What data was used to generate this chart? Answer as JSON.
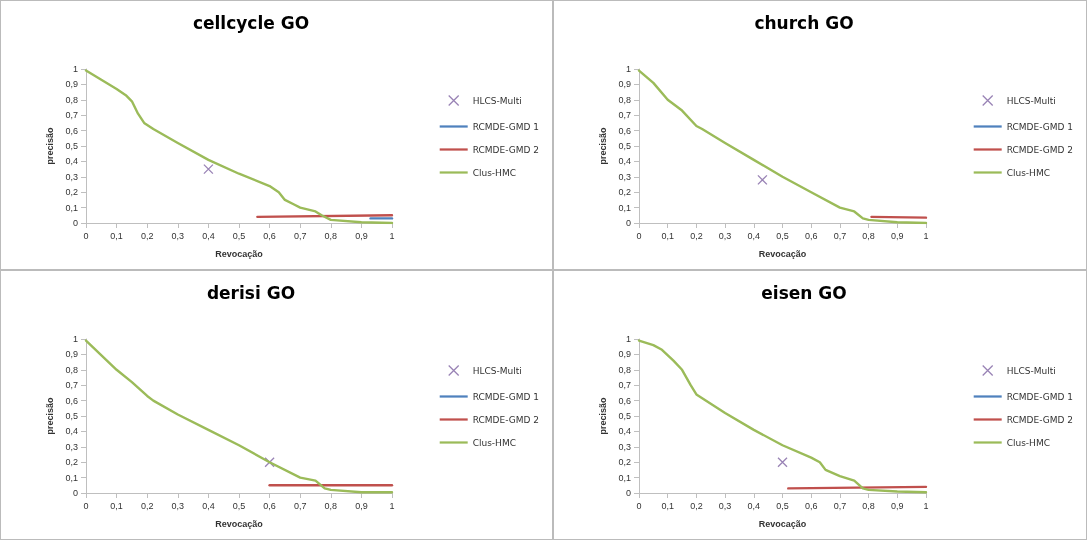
{
  "chart_data": [
    {
      "type": "line",
      "title": "cellcycle GO",
      "xlabel": "Revocação",
      "ylabel": "precisão",
      "legend": "right",
      "grid": false,
      "xlim": [
        0,
        1
      ],
      "ylim": [
        0,
        1
      ],
      "xticks": [
        {
          "value": 0,
          "label": "0"
        },
        {
          "value": 0.1,
          "label": "0,1"
        },
        {
          "value": 0.2,
          "label": "0,2"
        },
        {
          "value": 0.3,
          "label": "0,3"
        },
        {
          "value": 0.4,
          "label": "0,4"
        },
        {
          "value": 0.5,
          "label": "0,5"
        },
        {
          "value": 0.6,
          "label": "0,6"
        },
        {
          "value": 0.7,
          "label": "0,7"
        },
        {
          "value": 0.8,
          "label": "0,8"
        },
        {
          "value": 0.9,
          "label": "0,9"
        },
        {
          "value": 1,
          "label": "1"
        }
      ],
      "yticks": [
        {
          "value": 0,
          "label": "0"
        },
        {
          "value": 0.1,
          "label": "0,1"
        },
        {
          "value": 0.2,
          "label": "0,2"
        },
        {
          "value": 0.3,
          "label": "0,3"
        },
        {
          "value": 0.4,
          "label": "0,4"
        },
        {
          "value": 0.5,
          "label": "0,5"
        },
        {
          "value": 0.6,
          "label": "0,6"
        },
        {
          "value": 0.7,
          "label": "0,7"
        },
        {
          "value": 0.8,
          "label": "0,8"
        },
        {
          "value": 0.9,
          "label": "0,9"
        },
        {
          "value": 1,
          "label": "1"
        }
      ],
      "series": [
        {
          "name": "HLCS-Multi",
          "type": "scatter",
          "marker": "cross",
          "color": "#8064a2",
          "x": [
            0.4
          ],
          "values": [
            0.35
          ]
        },
        {
          "name": "RCMDE-GMD 1",
          "color": "#4f81bd",
          "x": [
            0.93,
            1
          ],
          "values": [
            0.03,
            0.03
          ]
        },
        {
          "name": "RCMDE-GMD 2",
          "type": "line",
          "color": "#c0504d",
          "x": [
            0.56,
            1
          ],
          "values": [
            0.04,
            0.05
          ]
        },
        {
          "name": "Clus-HMC",
          "type": "line",
          "color": "#9bbb59",
          "x": [
            0,
            0.05,
            0.1,
            0.13,
            0.15,
            0.17,
            0.19,
            0.22,
            0.3,
            0.4,
            0.5,
            0.6,
            0.63,
            0.65,
            0.68,
            0.7,
            0.75,
            0.77,
            0.8,
            0.9,
            1
          ],
          "values": [
            0.99,
            0.93,
            0.87,
            0.83,
            0.79,
            0.71,
            0.65,
            0.61,
            0.52,
            0.41,
            0.32,
            0.24,
            0.2,
            0.15,
            0.12,
            0.1,
            0.075,
            0.05,
            0.02,
            0.005,
            0
          ]
        }
      ]
    },
    {
      "type": "line",
      "title": "church GO",
      "xlabel": "Revocação",
      "ylabel": "precisão",
      "legend": "right",
      "grid": false,
      "xlim": [
        0,
        1
      ],
      "ylim": [
        0,
        1
      ],
      "xticks": [
        {
          "value": 0,
          "label": "0"
        },
        {
          "value": 0.1,
          "label": "0,1"
        },
        {
          "value": 0.2,
          "label": "0,2"
        },
        {
          "value": 0.3,
          "label": "0,3"
        },
        {
          "value": 0.4,
          "label": "0,4"
        },
        {
          "value": 0.5,
          "label": "0,5"
        },
        {
          "value": 0.6,
          "label": "0,6"
        },
        {
          "value": 0.7,
          "label": "0,7"
        },
        {
          "value": 0.8,
          "label": "0,8"
        },
        {
          "value": 0.9,
          "label": "0,9"
        },
        {
          "value": 1,
          "label": "1"
        }
      ],
      "yticks": [
        {
          "value": 0,
          "label": "0"
        },
        {
          "value": 0.1,
          "label": "0,1"
        },
        {
          "value": 0.2,
          "label": "0,2"
        },
        {
          "value": 0.3,
          "label": "0,3"
        },
        {
          "value": 0.4,
          "label": "0,4"
        },
        {
          "value": 0.5,
          "label": "0,5"
        },
        {
          "value": 0.6,
          "label": "0,6"
        },
        {
          "value": 0.7,
          "label": "0,7"
        },
        {
          "value": 0.8,
          "label": "0,8"
        },
        {
          "value": 0.9,
          "label": "0,9"
        },
        {
          "value": 1,
          "label": "1"
        }
      ],
      "series": [
        {
          "name": "HLCS-Multi",
          "type": "scatter",
          "marker": "cross",
          "color": "#8064a2",
          "x": [
            0.43
          ],
          "values": [
            0.28
          ]
        },
        {
          "name": "RCMDE-GMD 1",
          "color": "#4f81bd"
        },
        {
          "name": "RCMDE-GMD 2",
          "type": "line",
          "color": "#c0504d",
          "x": [
            0.81,
            1
          ],
          "values": [
            0.04,
            0.035
          ]
        },
        {
          "name": "Clus-HMC",
          "type": "line",
          "color": "#9bbb59",
          "x": [
            0,
            0.05,
            0.1,
            0.15,
            0.2,
            0.22,
            0.3,
            0.4,
            0.5,
            0.6,
            0.7,
            0.75,
            0.78,
            0.8,
            0.9,
            1
          ],
          "values": [
            0.99,
            0.91,
            0.8,
            0.73,
            0.63,
            0.61,
            0.52,
            0.41,
            0.3,
            0.2,
            0.1,
            0.075,
            0.03,
            0.02,
            0.005,
            0
          ]
        }
      ]
    },
    {
      "type": "line",
      "title": "derisi GO",
      "xlabel": "Revocação",
      "ylabel": "precisão",
      "legend": "right",
      "grid": false,
      "xlim": [
        0,
        1
      ],
      "ylim": [
        0,
        1
      ],
      "xticks": [
        {
          "value": 0,
          "label": "0"
        },
        {
          "value": 0.1,
          "label": "0,1"
        },
        {
          "value": 0.2,
          "label": "0,2"
        },
        {
          "value": 0.3,
          "label": "0,3"
        },
        {
          "value": 0.4,
          "label": "0,4"
        },
        {
          "value": 0.5,
          "label": "0,5"
        },
        {
          "value": 0.6,
          "label": "0,6"
        },
        {
          "value": 0.7,
          "label": "0,7"
        },
        {
          "value": 0.8,
          "label": "0,8"
        },
        {
          "value": 0.9,
          "label": "0,9"
        },
        {
          "value": 1,
          "label": "1"
        }
      ],
      "yticks": [
        {
          "value": 0,
          "label": "0"
        },
        {
          "value": 0.1,
          "label": "0,1"
        },
        {
          "value": 0.2,
          "label": "0,2"
        },
        {
          "value": 0.3,
          "label": "0,3"
        },
        {
          "value": 0.4,
          "label": "0,4"
        },
        {
          "value": 0.5,
          "label": "0,5"
        },
        {
          "value": 0.6,
          "label": "0,6"
        },
        {
          "value": 0.7,
          "label": "0,7"
        },
        {
          "value": 0.8,
          "label": "0,8"
        },
        {
          "value": 0.9,
          "label": "0,9"
        },
        {
          "value": 1,
          "label": "1"
        }
      ],
      "series": [
        {
          "name": "HLCS-Multi",
          "type": "scatter",
          "marker": "cross",
          "color": "#8064a2",
          "x": [
            0.6
          ],
          "values": [
            0.2
          ]
        },
        {
          "name": "RCMDE-GMD 1",
          "color": "#4f81bd"
        },
        {
          "name": "RCMDE-GMD 2",
          "type": "line",
          "color": "#c0504d",
          "x": [
            0.6,
            1
          ],
          "values": [
            0.05,
            0.05
          ]
        },
        {
          "name": "Clus-HMC",
          "type": "line",
          "color": "#9bbb59",
          "x": [
            0,
            0.1,
            0.15,
            0.2,
            0.22,
            0.3,
            0.4,
            0.5,
            0.6,
            0.7,
            0.75,
            0.78,
            0.8,
            0.9,
            1
          ],
          "values": [
            0.99,
            0.8,
            0.72,
            0.63,
            0.6,
            0.51,
            0.41,
            0.31,
            0.2,
            0.1,
            0.08,
            0.03,
            0.02,
            0.005,
            0.005
          ]
        }
      ]
    },
    {
      "type": "line",
      "title": "eisen GO",
      "xlabel": "Revocação",
      "ylabel": "precisão",
      "legend": "right",
      "grid": false,
      "xlim": [
        0,
        1
      ],
      "ylim": [
        0,
        1
      ],
      "xticks": [
        {
          "value": 0,
          "label": "0"
        },
        {
          "value": 0.1,
          "label": "0,1"
        },
        {
          "value": 0.2,
          "label": "0,2"
        },
        {
          "value": 0.3,
          "label": "0,3"
        },
        {
          "value": 0.4,
          "label": "0,4"
        },
        {
          "value": 0.5,
          "label": "0,5"
        },
        {
          "value": 0.6,
          "label": "0,6"
        },
        {
          "value": 0.7,
          "label": "0,7"
        },
        {
          "value": 0.8,
          "label": "0,8"
        },
        {
          "value": 0.9,
          "label": "0,9"
        },
        {
          "value": 1,
          "label": "1"
        }
      ],
      "yticks": [
        {
          "value": 0,
          "label": "0"
        },
        {
          "value": 0.1,
          "label": "0,1"
        },
        {
          "value": 0.2,
          "label": "0,2"
        },
        {
          "value": 0.3,
          "label": "0,3"
        },
        {
          "value": 0.4,
          "label": "0,4"
        },
        {
          "value": 0.5,
          "label": "0,5"
        },
        {
          "value": 0.6,
          "label": "0,6"
        },
        {
          "value": 0.7,
          "label": "0,7"
        },
        {
          "value": 0.8,
          "label": "0,8"
        },
        {
          "value": 0.9,
          "label": "0,9"
        },
        {
          "value": 1,
          "label": "1"
        }
      ],
      "series": [
        {
          "name": "HLCS-Multi",
          "type": "scatter",
          "marker": "cross",
          "color": "#8064a2",
          "x": [
            0.5
          ],
          "values": [
            0.2
          ]
        },
        {
          "name": "RCMDE-GMD 1",
          "color": "#4f81bd"
        },
        {
          "name": "RCMDE-GMD 2",
          "type": "line",
          "color": "#c0504d",
          "x": [
            0.52,
            1
          ],
          "values": [
            0.03,
            0.04
          ]
        },
        {
          "name": "Clus-HMC",
          "type": "line",
          "color": "#9bbb59",
          "x": [
            0,
            0.05,
            0.08,
            0.12,
            0.15,
            0.18,
            0.2,
            0.3,
            0.4,
            0.5,
            0.6,
            0.63,
            0.65,
            0.7,
            0.75,
            0.78,
            0.8,
            0.9,
            1
          ],
          "values": [
            0.99,
            0.96,
            0.93,
            0.86,
            0.8,
            0.7,
            0.64,
            0.52,
            0.41,
            0.31,
            0.23,
            0.2,
            0.15,
            0.11,
            0.08,
            0.03,
            0.02,
            0.01,
            0.005
          ]
        }
      ]
    }
  ]
}
